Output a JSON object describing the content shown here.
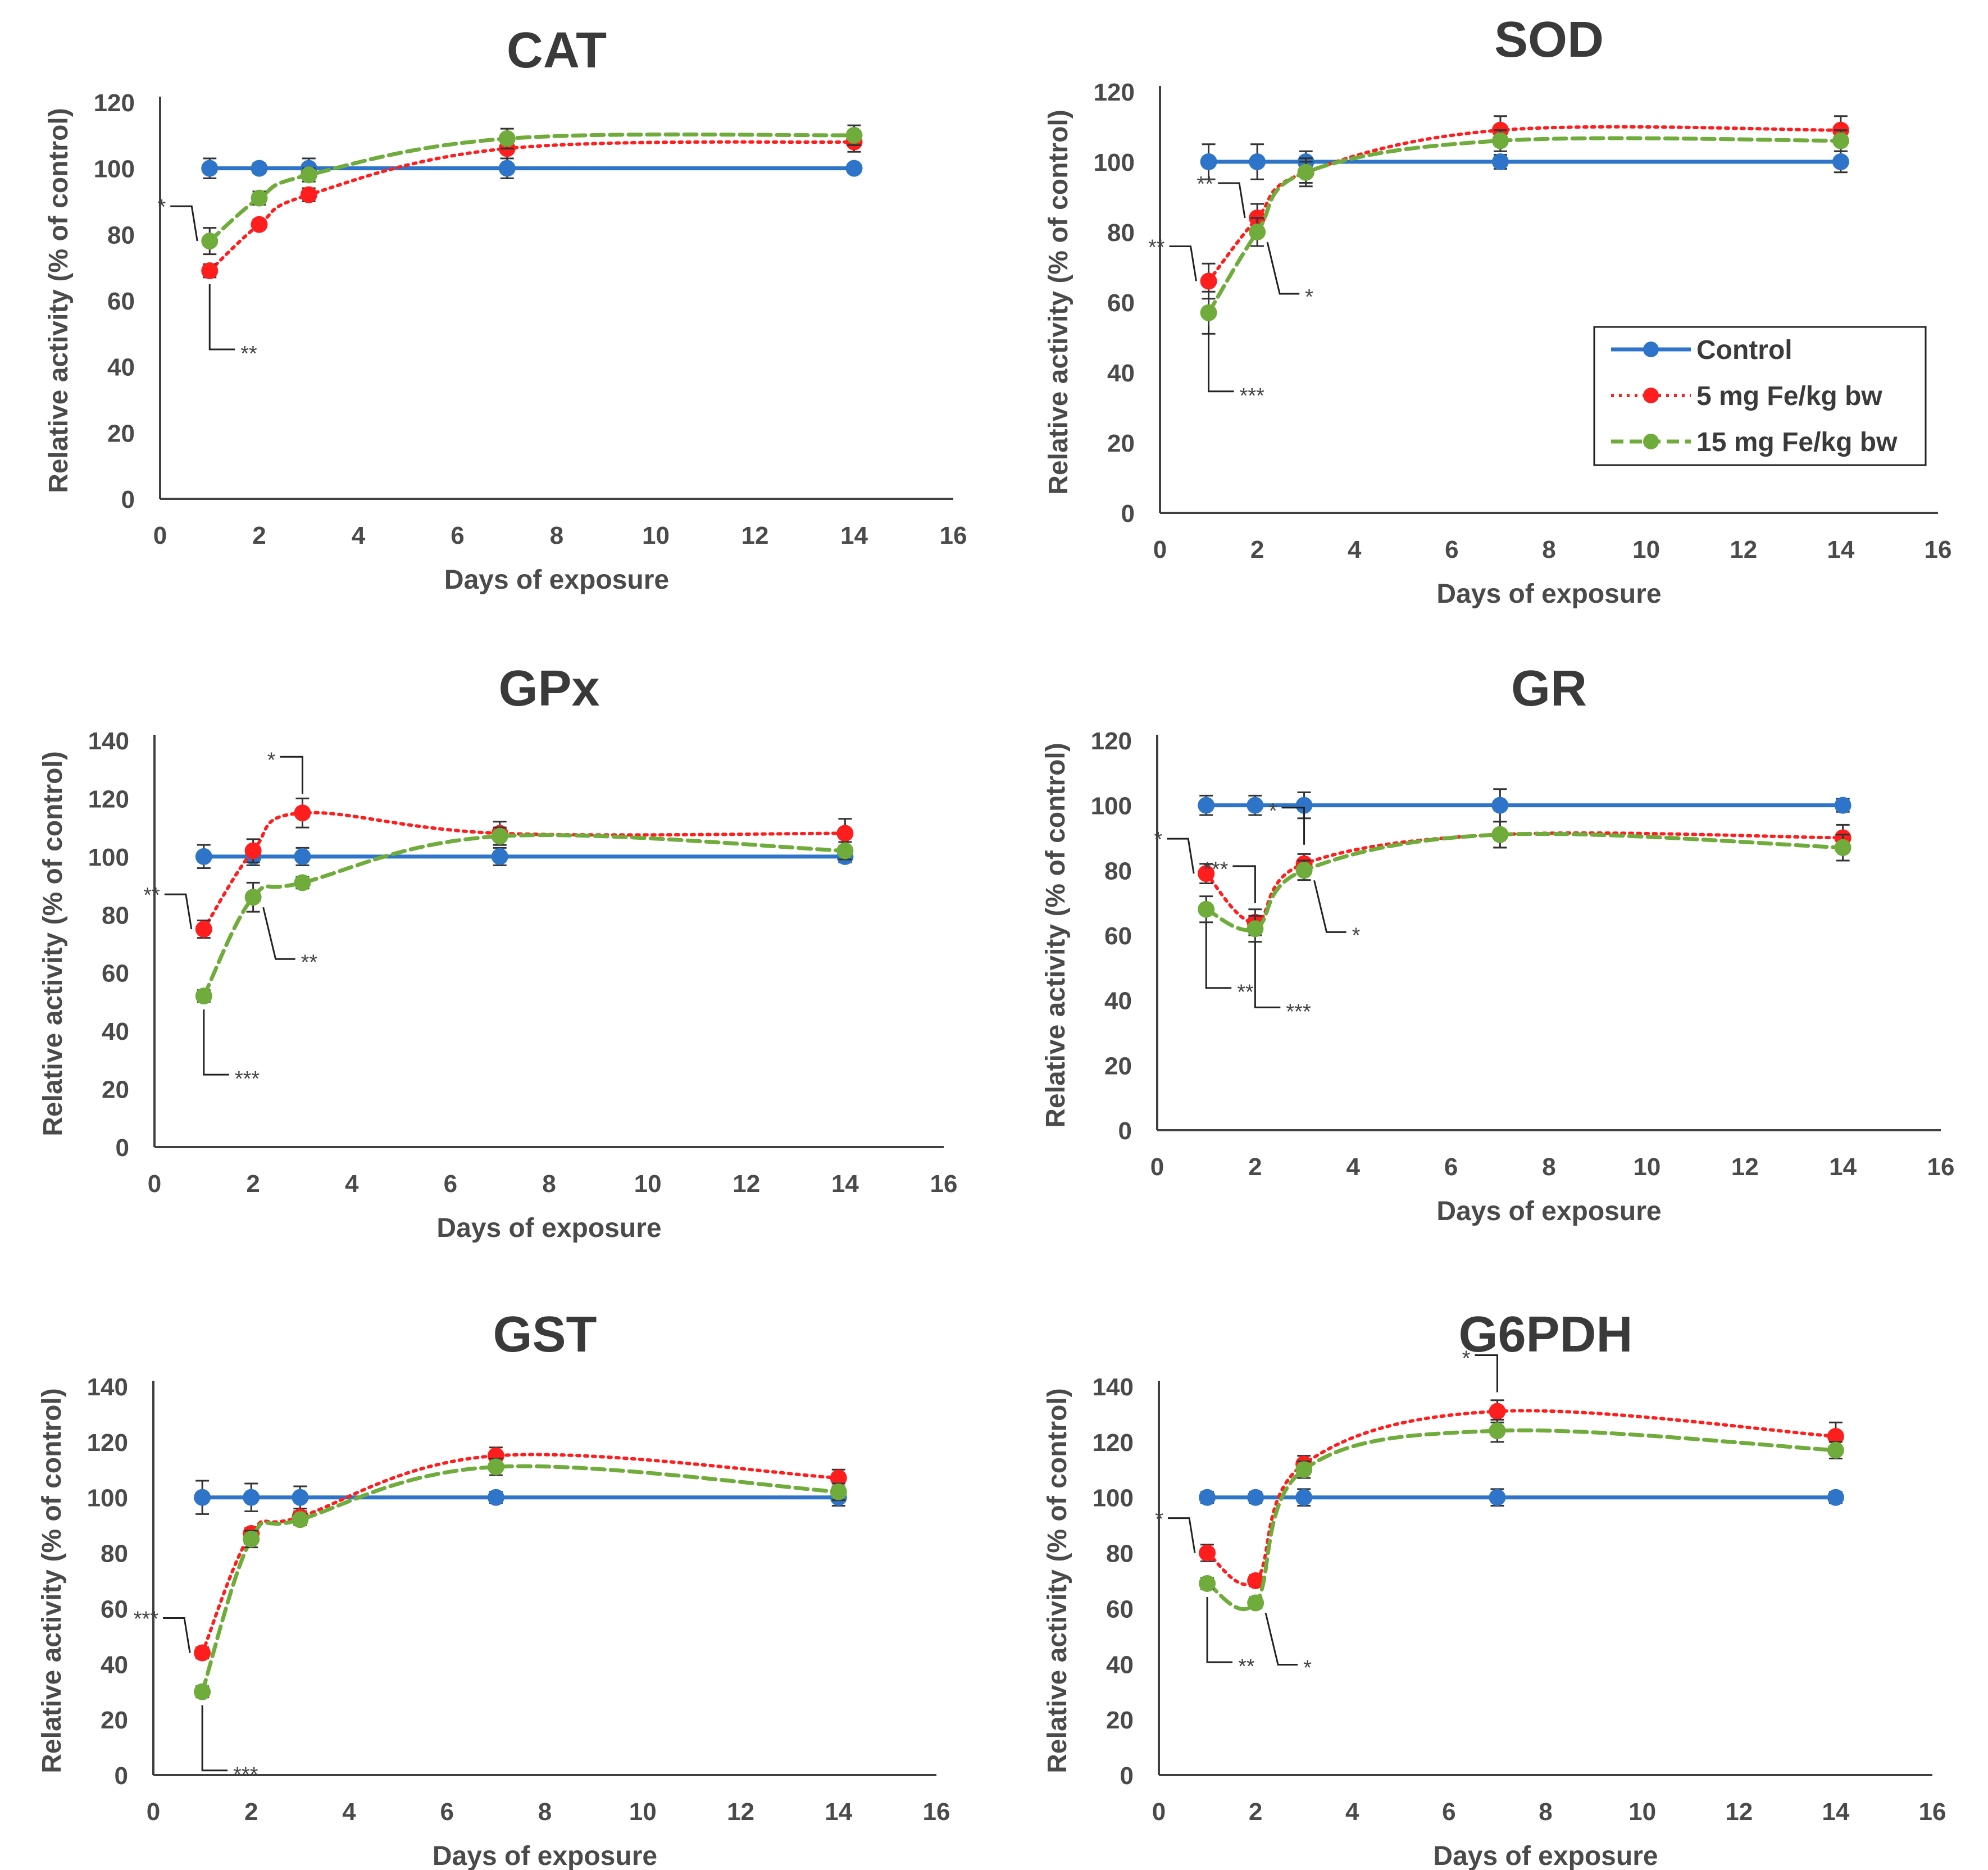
{
  "colors": {
    "control": "#2e75c9",
    "fe5": "#ff1e1e",
    "fe15": "#6fac3c",
    "axis": "#404040",
    "text": "#4a4a4a"
  },
  "legend": [
    {
      "key": "control",
      "label": "Control"
    },
    {
      "key": "fe5",
      "label": "5 mg Fe/kg bw"
    },
    {
      "key": "fe15",
      "label": "15 mg Fe/kg bw"
    }
  ],
  "chart_data": [
    {
      "type": "line",
      "title": "CAT",
      "xlabel": "Days  of exposure",
      "ylabel": "Relative activity (%  of control)",
      "xlim": [
        0,
        16
      ],
      "xticks": [
        0,
        2,
        4,
        6,
        8,
        10,
        12,
        14,
        16
      ],
      "ylim": [
        0,
        120
      ],
      "yticks": [
        0,
        20,
        40,
        60,
        80,
        100,
        120
      ],
      "x": [
        1,
        2,
        3,
        7,
        14
      ],
      "series": [
        {
          "key": "control",
          "name": "Control",
          "values": [
            100,
            100,
            100,
            100,
            100
          ],
          "err": [
            3,
            1.5,
            3,
            3,
            1
          ]
        },
        {
          "key": "fe5",
          "name": "5 mg Fe/kg bw",
          "values": [
            69,
            83,
            92,
            106,
            108
          ],
          "err": [
            2,
            1.5,
            2,
            3,
            3
          ]
        },
        {
          "key": "fe15",
          "name": "15 mg Fe/kg bw",
          "values": [
            78,
            91,
            98,
            109,
            110
          ],
          "err": [
            4,
            2,
            2,
            3,
            3
          ]
        }
      ],
      "annotations": [
        {
          "text": "*",
          "at": [
            1,
            78
          ],
          "side": "left"
        },
        {
          "text": "**",
          "at": [
            1,
            69
          ],
          "side": "below"
        }
      ]
    },
    {
      "type": "line",
      "title": "SOD",
      "xlabel": "Days  of exposure",
      "ylabel": "Relative activity (%  of control)",
      "xlim": [
        0,
        16
      ],
      "xticks": [
        0,
        2,
        4,
        6,
        8,
        10,
        12,
        14,
        16
      ],
      "ylim": [
        0,
        120
      ],
      "yticks": [
        0,
        20,
        40,
        60,
        80,
        100,
        120
      ],
      "x": [
        1,
        2,
        3,
        7,
        14
      ],
      "series": [
        {
          "key": "control",
          "name": "Control",
          "values": [
            100,
            100,
            100,
            100,
            100
          ],
          "err": [
            5,
            5,
            3,
            2,
            3
          ]
        },
        {
          "key": "fe5",
          "name": "5 mg Fe/kg bw",
          "values": [
            66,
            84,
            97,
            109,
            109
          ],
          "err": [
            5,
            4,
            3,
            4,
            4
          ]
        },
        {
          "key": "fe15",
          "name": "15 mg Fe/kg bw",
          "values": [
            57,
            80,
            97,
            106,
            106
          ],
          "err": [
            6,
            4,
            4,
            3,
            3
          ]
        }
      ],
      "annotations": [
        {
          "text": "**",
          "at": [
            1,
            66
          ],
          "side": "left"
        },
        {
          "text": "**",
          "at": [
            2,
            84
          ],
          "side": "left"
        },
        {
          "text": "*",
          "at": [
            2,
            80
          ],
          "side": "right"
        },
        {
          "text": "***",
          "at": [
            1,
            57
          ],
          "side": "below"
        }
      ]
    },
    {
      "type": "line",
      "title": "GPx",
      "xlabel": "Days  of exposure",
      "ylabel": "Relative activity (%  of control)",
      "xlim": [
        0,
        16
      ],
      "xticks": [
        0,
        2,
        4,
        6,
        8,
        10,
        12,
        14,
        16
      ],
      "ylim": [
        0,
        140
      ],
      "yticks": [
        0,
        20,
        40,
        60,
        80,
        100,
        120,
        140
      ],
      "x": [
        1,
        2,
        3,
        7,
        14
      ],
      "series": [
        {
          "key": "control",
          "name": "Control",
          "values": [
            100,
            100,
            100,
            100,
            100
          ],
          "err": [
            4,
            3,
            3,
            3,
            2
          ]
        },
        {
          "key": "fe5",
          "name": "5 mg Fe/kg bw",
          "values": [
            75,
            102,
            115,
            108,
            108
          ],
          "err": [
            3,
            4,
            5,
            4,
            5
          ]
        },
        {
          "key": "fe15",
          "name": "15 mg Fe/kg bw",
          "values": [
            52,
            86,
            91,
            107,
            102
          ],
          "err": [
            2,
            5,
            2,
            3,
            3
          ]
        }
      ],
      "annotations": [
        {
          "text": "*",
          "at": [
            3,
            115
          ],
          "side": "above"
        },
        {
          "text": "**",
          "at": [
            1,
            75
          ],
          "side": "left"
        },
        {
          "text": "**",
          "at": [
            2,
            86
          ],
          "side": "right"
        },
        {
          "text": "***",
          "at": [
            1,
            52
          ],
          "side": "below"
        }
      ]
    },
    {
      "type": "line",
      "title": "GR",
      "xlabel": "Days  of exposure",
      "ylabel": "Relative activity (%  of control)",
      "xlim": [
        0,
        16
      ],
      "xticks": [
        0,
        2,
        4,
        6,
        8,
        10,
        12,
        14,
        16
      ],
      "ylim": [
        0,
        120
      ],
      "yticks": [
        0,
        20,
        40,
        60,
        80,
        100,
        120
      ],
      "x": [
        1,
        2,
        3,
        7,
        14
      ],
      "series": [
        {
          "key": "control",
          "name": "Control",
          "values": [
            100,
            100,
            100,
            100,
            100
          ],
          "err": [
            3,
            3,
            4,
            5,
            2
          ]
        },
        {
          "key": "fe5",
          "name": "5 mg Fe/kg bw",
          "values": [
            79,
            64,
            82,
            91,
            90
          ],
          "err": [
            3,
            4,
            3,
            4,
            4
          ]
        },
        {
          "key": "fe15",
          "name": "15 mg Fe/kg bw",
          "values": [
            68,
            62,
            80,
            91,
            87
          ],
          "err": [
            4,
            4,
            3,
            4,
            4
          ]
        }
      ],
      "annotations": [
        {
          "text": "*",
          "at": [
            1,
            79
          ],
          "side": "left"
        },
        {
          "text": "***",
          "at": [
            2,
            64
          ],
          "side": "above"
        },
        {
          "text": "*",
          "at": [
            3,
            82
          ],
          "side": "above"
        },
        {
          "text": "*",
          "at": [
            3,
            80
          ],
          "side": "right"
        },
        {
          "text": "**",
          "at": [
            1,
            68
          ],
          "side": "below"
        },
        {
          "text": "***",
          "at": [
            2,
            62
          ],
          "side": "below"
        }
      ]
    },
    {
      "type": "line",
      "title": "GST",
      "xlabel": "Days  of exposure",
      "ylabel": "Relative activity (%  of control)",
      "xlim": [
        0,
        16
      ],
      "xticks": [
        0,
        2,
        4,
        6,
        8,
        10,
        12,
        14,
        16
      ],
      "ylim": [
        0,
        140
      ],
      "yticks": [
        0,
        20,
        40,
        60,
        80,
        100,
        120,
        140
      ],
      "x": [
        1,
        2,
        3,
        7,
        14
      ],
      "series": [
        {
          "key": "control",
          "name": "Control",
          "values": [
            100,
            100,
            100,
            100,
            100
          ],
          "err": [
            6,
            5,
            4,
            2,
            3
          ]
        },
        {
          "key": "fe5",
          "name": "5 mg Fe/kg bw",
          "values": [
            44,
            87,
            93,
            115,
            107
          ],
          "err": [
            2,
            2,
            2,
            3,
            3
          ]
        },
        {
          "key": "fe15",
          "name": "15 mg Fe/kg bw",
          "values": [
            30,
            85,
            92,
            111,
            102
          ],
          "err": [
            2,
            3,
            2,
            3,
            3
          ]
        }
      ],
      "annotations": [
        {
          "text": "***",
          "at": [
            1,
            44
          ],
          "side": "left"
        },
        {
          "text": "***",
          "at": [
            1,
            30
          ],
          "side": "below"
        }
      ]
    },
    {
      "type": "line",
      "title": "G6PDH",
      "xlabel": "Days  of exposure",
      "ylabel": "Relative activity (%  of control)",
      "xlim": [
        0,
        16
      ],
      "xticks": [
        0,
        2,
        4,
        6,
        8,
        10,
        12,
        14,
        16
      ],
      "ylim": [
        0,
        140
      ],
      "yticks": [
        0,
        20,
        40,
        60,
        80,
        100,
        120,
        140
      ],
      "x": [
        1,
        2,
        3,
        7,
        14
      ],
      "series": [
        {
          "key": "control",
          "name": "Control",
          "values": [
            100,
            100,
            100,
            100,
            100
          ],
          "err": [
            2,
            2,
            3,
            3,
            2
          ]
        },
        {
          "key": "fe5",
          "name": "5 mg Fe/kg bw",
          "values": [
            80,
            70,
            112,
            131,
            122
          ],
          "err": [
            3,
            2,
            3,
            4,
            5
          ]
        },
        {
          "key": "fe15",
          "name": "15 mg Fe/kg bw",
          "values": [
            69,
            62,
            110,
            124,
            117
          ],
          "err": [
            2,
            2,
            3,
            4,
            3
          ]
        }
      ],
      "annotations": [
        {
          "text": "*",
          "at": [
            1,
            80
          ],
          "side": "left"
        },
        {
          "text": "*",
          "at": [
            7,
            131
          ],
          "side": "above"
        },
        {
          "text": "*",
          "at": [
            2,
            62
          ],
          "side": "right"
        },
        {
          "text": "**",
          "at": [
            1,
            69
          ],
          "side": "below"
        }
      ]
    }
  ]
}
